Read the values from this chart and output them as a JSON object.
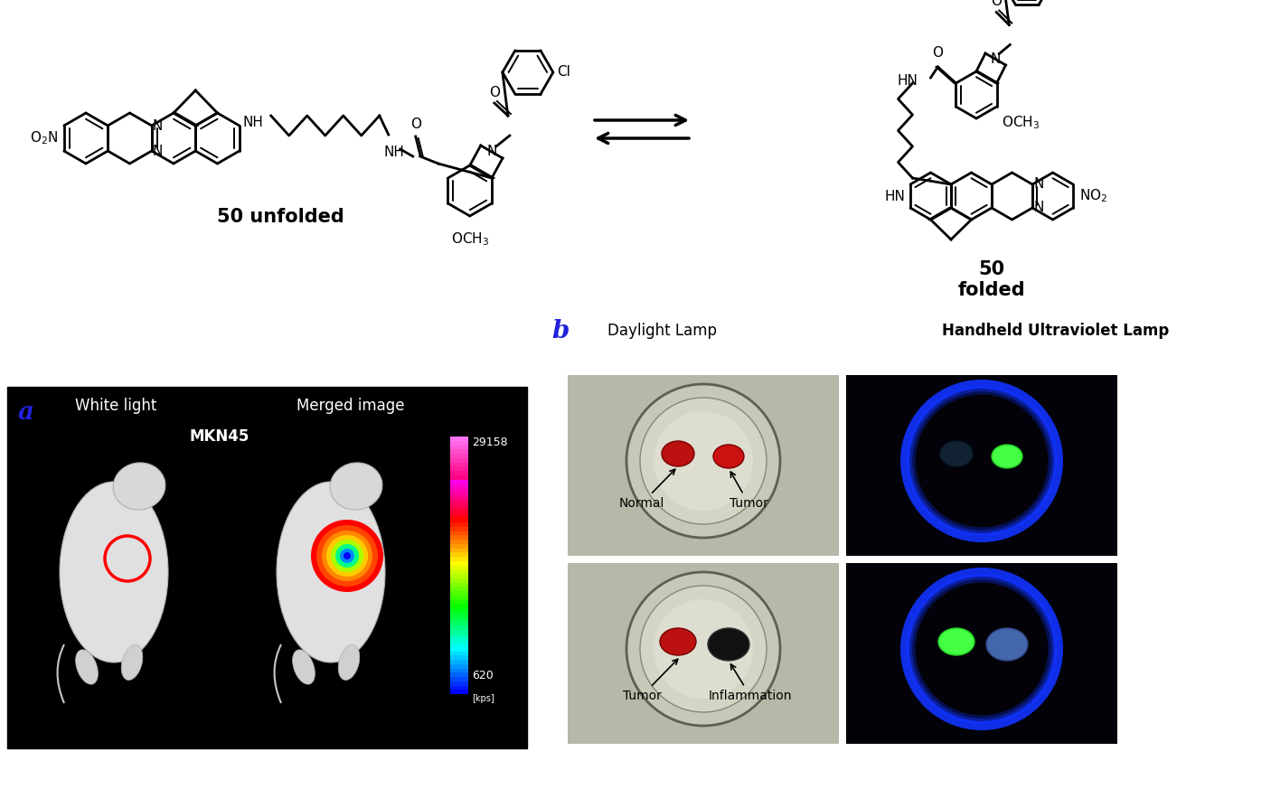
{
  "background_color": "#ffffff",
  "label_a": "a",
  "label_b": "b",
  "label_white_light": "White light",
  "label_merged": "Merged image",
  "label_mkn45": "MKN45",
  "label_daylight": "Daylight Lamp",
  "label_uv": "Handheld Ultraviolet Lamp",
  "label_50_unfolded": "50 unfolded",
  "label_50": "50",
  "label_folded": "folded",
  "label_normal": "Normal",
  "label_tumor": "Tumor",
  "label_tumor2": "Tumor",
  "label_inflammation": "Inflammation",
  "scale_top": "29158",
  "scale_bottom": "620",
  "scale_unit": "[kps]",
  "fig_w": 14.06,
  "fig_h": 8.73,
  "dpi": 100
}
